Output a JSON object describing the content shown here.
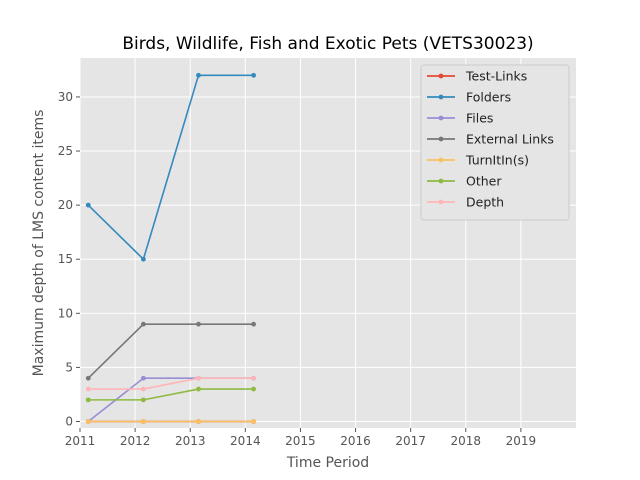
{
  "chart_data": {
    "type": "line",
    "title": "Birds, Wildlife, Fish and Exotic Pets (VETS30023)",
    "xlabel": "Time Period",
    "ylabel": "Maximum depth of LMS content items",
    "xlim": [
      2011,
      2020
    ],
    "ylim": [
      -0.6,
      33.6
    ],
    "x_ticks": [
      2011,
      2012,
      2013,
      2014,
      2015,
      2016,
      2017,
      2018,
      2019
    ],
    "y_ticks": [
      0,
      5,
      10,
      15,
      20,
      25,
      30
    ],
    "grid": true,
    "legend_position": "top-right",
    "x": [
      2011.15,
      2012.15,
      2013.15,
      2014.15
    ],
    "series": [
      {
        "name": "Test-Links",
        "color": "#E24A33",
        "values": [
          0,
          0,
          0,
          0
        ]
      },
      {
        "name": "Folders",
        "color": "#348ABD",
        "values": [
          20,
          15,
          32,
          32
        ]
      },
      {
        "name": "Files",
        "color": "#988ED5",
        "values": [
          0,
          4,
          4,
          4
        ]
      },
      {
        "name": "External Links",
        "color": "#777777",
        "values": [
          4,
          9,
          9,
          9
        ]
      },
      {
        "name": "TurnItIn(s)",
        "color": "#FBC15E",
        "values": [
          0,
          0,
          0,
          0
        ]
      },
      {
        "name": "Other",
        "color": "#8EBA42",
        "values": [
          2,
          2,
          3,
          3
        ]
      },
      {
        "name": "Depth",
        "color": "#FFB5B8",
        "values": [
          3,
          3,
          4,
          4
        ]
      }
    ]
  }
}
